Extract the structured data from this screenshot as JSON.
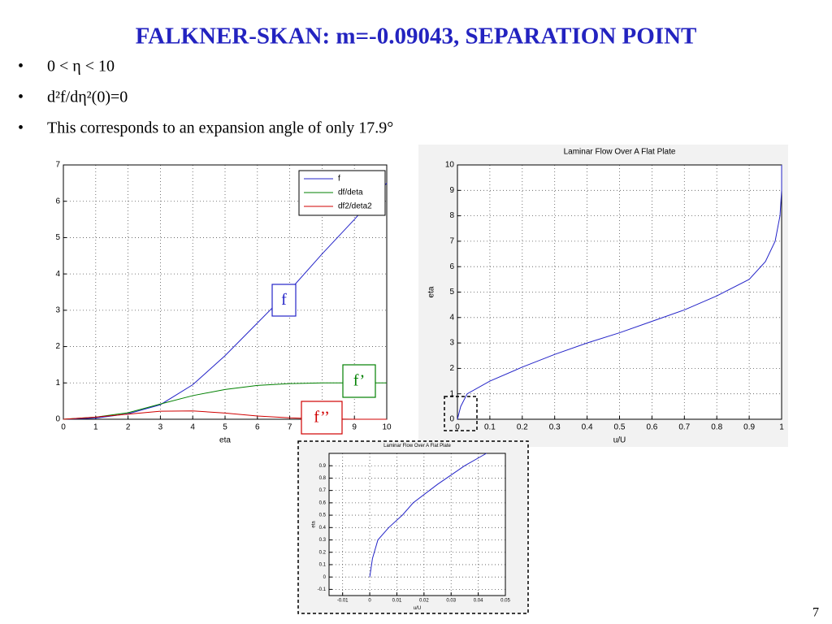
{
  "title": "FALKNER-SKAN: m=-0.09043, SEPARATION POINT",
  "bullets": [
    "0 < η < 10",
    "d²f/dη²(0)=0",
    "This corresponds to an expansion angle of only 17.9°"
  ],
  "page_number": "7",
  "chart_data": [
    {
      "type": "line",
      "xlabel": "eta",
      "x": [
        0,
        1,
        2,
        3,
        4,
        5,
        6,
        7,
        8,
        9,
        10
      ],
      "series": [
        {
          "name": "f",
          "color": "#2424c8",
          "values": [
            0,
            0.03,
            0.15,
            0.4,
            0.95,
            1.75,
            2.65,
            3.55,
            4.55,
            5.5,
            6.5
          ]
        },
        {
          "name": "df/deta",
          "color": "#008000",
          "values": [
            0,
            0.06,
            0.18,
            0.42,
            0.65,
            0.82,
            0.93,
            0.98,
            1,
            1,
            1
          ]
        },
        {
          "name": "df2/deta2",
          "color": "#d00000",
          "values": [
            0,
            0.06,
            0.14,
            0.22,
            0.23,
            0.17,
            0.09,
            0.04,
            0.01,
            0,
            0
          ]
        }
      ],
      "annotations": [
        "f",
        "f’",
        "f’’"
      ],
      "xlim": [
        0,
        10
      ],
      "ylim": [
        0,
        7
      ],
      "xticks": [
        0,
        1,
        2,
        3,
        4,
        5,
        6,
        7,
        8,
        9,
        10
      ],
      "yticks": [
        0,
        1,
        2,
        3,
        4,
        5,
        6,
        7
      ],
      "grid": true,
      "legend": "upper-right"
    },
    {
      "type": "line",
      "title": "Laminar Flow Over A Flat Plate",
      "xlabel": "u/U",
      "ylabel": "eta",
      "x": [
        0,
        0.01,
        0.03,
        0.1,
        0.2,
        0.3,
        0.4,
        0.5,
        0.6,
        0.7,
        0.8,
        0.9,
        0.95,
        0.98,
        0.995,
        1,
        1
      ],
      "series": [
        {
          "color": "#2424c8",
          "values": [
            0,
            0.5,
            1,
            1.5,
            2.05,
            2.55,
            3,
            3.4,
            3.85,
            4.3,
            4.85,
            5.5,
            6.2,
            7,
            8,
            9,
            10
          ]
        }
      ],
      "xlim": [
        0,
        1
      ],
      "ylim": [
        0,
        10
      ],
      "xticks": [
        0,
        0.1,
        0.2,
        0.3,
        0.4,
        0.5,
        0.6,
        0.7,
        0.8,
        0.9,
        1
      ],
      "yticks": [
        0,
        1,
        2,
        3,
        4,
        5,
        6,
        7,
        8,
        9,
        10
      ],
      "grid": true
    },
    {
      "type": "line",
      "title": "Laminar Flow Over A Flat Plate",
      "xlabel": "u/U",
      "ylabel": "eta",
      "x": [
        0,
        0.001,
        0.003,
        0.007,
        0.012,
        0.016,
        0.025,
        0.035,
        0.043
      ],
      "series": [
        {
          "color": "#2424c8",
          "values": [
            0,
            0.15,
            0.3,
            0.4,
            0.5,
            0.6,
            0.75,
            0.9,
            1
          ]
        }
      ],
      "xlim": [
        -0.015,
        0.05
      ],
      "ylim": [
        -0.15,
        1
      ],
      "xticks": [
        -0.01,
        0,
        0.01,
        0.02,
        0.03,
        0.04,
        0.05
      ],
      "yticks": [
        -0.1,
        0,
        0.1,
        0.2,
        0.3,
        0.4,
        0.5,
        0.6,
        0.7,
        0.8,
        0.9
      ],
      "grid": true
    }
  ]
}
